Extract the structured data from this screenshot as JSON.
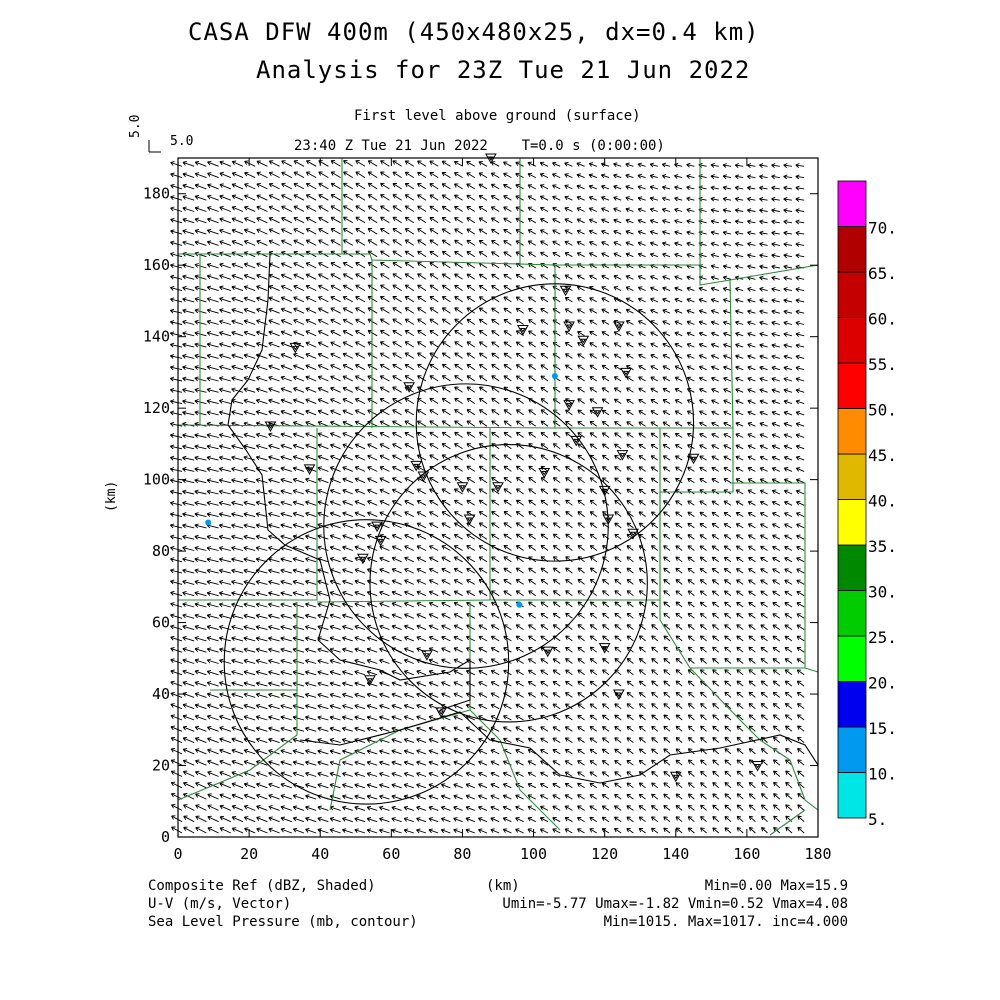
{
  "titles": {
    "line1": "CASA DFW 400m (450x480x25, dx=0.4 km)",
    "line2": "Analysis for 23Z Tue 21 Jun 2022"
  },
  "subtitle": {
    "level": "First level above ground (surface)",
    "time": "23:40 Z Tue 21 Jun 2022    T=0.0 s (0:00:00)"
  },
  "vector_scale": {
    "vertical_label": "5.0",
    "horizontal_label": "5.0"
  },
  "footer": {
    "left1": "Composite Ref (dBZ, Shaded)",
    "left2": "U-V (m/s, Vector)",
    "left3": "Sea Level Pressure (mb, contour)",
    "center": "(km)",
    "right1": "Min=0.00 Max=15.9",
    "right2": "Umin=-5.77 Umax=-1.82 Vmin=0.52 Vmax=4.08",
    "right3": "Min=1015. Max=1017. inc=4.000"
  },
  "chart_data": {
    "type": "map",
    "xlabel": "(km)",
    "ylabel": "(km)",
    "xlim": [
      0,
      180
    ],
    "ylim": [
      0,
      190
    ],
    "x_ticks": [
      0,
      20,
      40,
      60,
      80,
      100,
      120,
      140,
      160,
      180
    ],
    "y_ticks": [
      0,
      20,
      40,
      60,
      80,
      100,
      120,
      140,
      160,
      180
    ],
    "colorbar": {
      "label_values": [
        "5.",
        "10.",
        "15.",
        "20.",
        "25.",
        "30.",
        "35.",
        "40.",
        "45.",
        "50.",
        "55.",
        "60.",
        "65.",
        "70."
      ],
      "colors": [
        "#00e5e5",
        "#0099f0",
        "#0000ee",
        "#00ff00",
        "#00cc00",
        "#008800",
        "#ffff00",
        "#e0b800",
        "#ff8c00",
        "#ff0000",
        "#dd0000",
        "#c40000",
        "#b00000",
        "#ff00ff"
      ]
    },
    "wind_ranges": {
      "u_min": -5.77,
      "u_max": -1.82,
      "v_min": 0.52,
      "v_max": 4.08
    },
    "radar_range_rings": [
      {
        "center_km": [
          106,
          116
        ],
        "radius_km": 39
      },
      {
        "center_km": [
          81,
          87
        ],
        "radius_km": 40
      },
      {
        "center_km": [
          93,
          71
        ],
        "radius_km": 39
      },
      {
        "center_km": [
          53,
          49
        ],
        "radius_km": 40
      }
    ],
    "reflectivity_points_km": [
      [
        106,
        129
      ],
      [
        8.5,
        88
      ],
      [
        96,
        65
      ]
    ],
    "station_markers_km": [
      [
        88,
        190
      ],
      [
        109,
        153
      ],
      [
        97,
        142
      ],
      [
        110,
        143
      ],
      [
        114,
        139
      ],
      [
        124,
        143
      ],
      [
        126,
        130
      ],
      [
        33,
        137
      ],
      [
        65,
        126
      ],
      [
        110,
        121
      ],
      [
        118,
        119
      ],
      [
        26,
        115
      ],
      [
        37,
        103
      ],
      [
        67,
        104
      ],
      [
        69,
        101
      ],
      [
        103,
        102
      ],
      [
        90,
        98
      ],
      [
        80,
        98
      ],
      [
        120,
        97
      ],
      [
        125,
        107
      ],
      [
        112,
        111
      ],
      [
        145,
        106
      ],
      [
        82,
        89
      ],
      [
        121,
        89
      ],
      [
        128,
        85
      ],
      [
        56,
        87
      ],
      [
        57,
        83
      ],
      [
        52,
        78
      ],
      [
        70,
        51
      ],
      [
        104,
        52
      ],
      [
        120,
        53
      ],
      [
        54,
        44
      ],
      [
        124,
        40
      ],
      [
        74,
        35
      ],
      [
        140,
        17
      ],
      [
        163,
        20
      ]
    ]
  }
}
